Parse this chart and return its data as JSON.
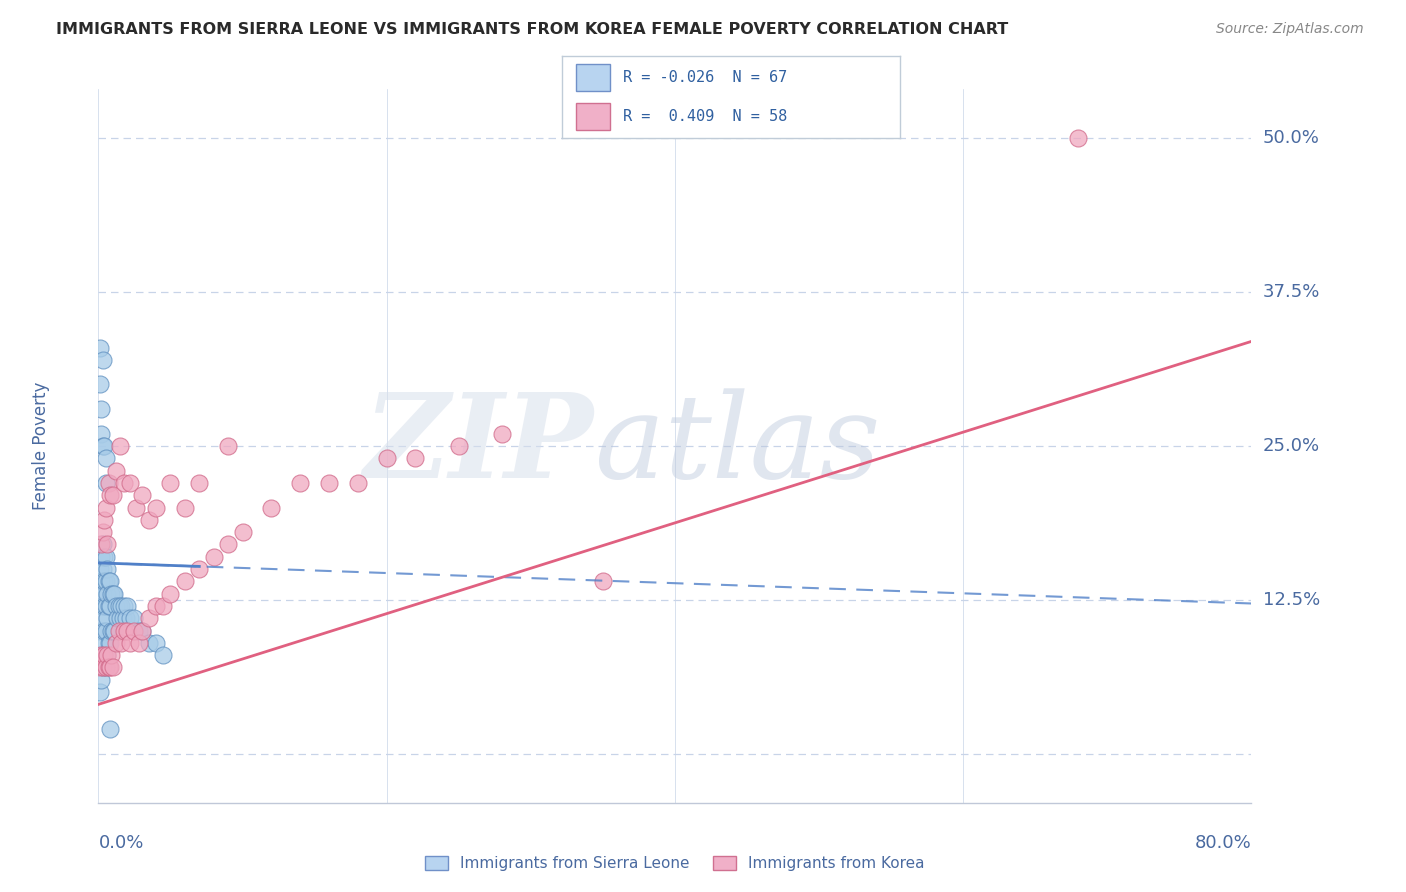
{
  "title": "IMMIGRANTS FROM SIERRA LEONE VS IMMIGRANTS FROM KOREA FEMALE POVERTY CORRELATION CHART",
  "source_text": "Source: ZipAtlas.com",
  "ylabel": "Female Poverty",
  "xlim": [
    0.0,
    0.8
  ],
  "ylim": [
    -0.04,
    0.54
  ],
  "yticks": [
    0.0,
    0.125,
    0.25,
    0.375,
    0.5
  ],
  "ytick_labels": [
    "",
    "12.5%",
    "25.0%",
    "37.5%",
    "50.0%"
  ],
  "background_color": "#ffffff",
  "grid_color": "#c8d4e8",
  "title_color": "#2a2a2a",
  "axis_color": "#4a6aa0",
  "sierra_leone_color": "#a8cce8",
  "sierra_leone_edge": "#6090c0",
  "korea_color": "#f0a8c0",
  "korea_edge": "#d06888",
  "trendline_sierra_color": "#5080c8",
  "trendline_korea_color": "#e06080",
  "sl_x": [
    0.001,
    0.001,
    0.001,
    0.001,
    0.001,
    0.002,
    0.002,
    0.002,
    0.002,
    0.003,
    0.003,
    0.003,
    0.003,
    0.003,
    0.003,
    0.004,
    0.004,
    0.004,
    0.004,
    0.004,
    0.005,
    0.005,
    0.005,
    0.005,
    0.005,
    0.006,
    0.006,
    0.006,
    0.006,
    0.007,
    0.007,
    0.007,
    0.008,
    0.008,
    0.008,
    0.009,
    0.009,
    0.01,
    0.01,
    0.011,
    0.011,
    0.012,
    0.013,
    0.014,
    0.015,
    0.016,
    0.017,
    0.018,
    0.019,
    0.02,
    0.022,
    0.025,
    0.028,
    0.03,
    0.035,
    0.04,
    0.045,
    0.001,
    0.001,
    0.002,
    0.002,
    0.003,
    0.003,
    0.004,
    0.005,
    0.005,
    0.008
  ],
  "sl_y": [
    0.15,
    0.13,
    0.1,
    0.08,
    0.05,
    0.16,
    0.14,
    0.12,
    0.06,
    0.17,
    0.15,
    0.13,
    0.11,
    0.09,
    0.07,
    0.16,
    0.14,
    0.12,
    0.1,
    0.08,
    0.16,
    0.14,
    0.12,
    0.1,
    0.07,
    0.15,
    0.13,
    0.11,
    0.08,
    0.14,
    0.12,
    0.09,
    0.14,
    0.12,
    0.09,
    0.13,
    0.1,
    0.13,
    0.1,
    0.13,
    0.1,
    0.12,
    0.11,
    0.12,
    0.11,
    0.12,
    0.11,
    0.12,
    0.11,
    0.12,
    0.11,
    0.11,
    0.1,
    0.1,
    0.09,
    0.09,
    0.08,
    0.33,
    0.3,
    0.28,
    0.26,
    0.32,
    0.25,
    0.25,
    0.24,
    0.22,
    0.02
  ],
  "kr_x": [
    0.001,
    0.002,
    0.003,
    0.004,
    0.005,
    0.006,
    0.007,
    0.008,
    0.009,
    0.01,
    0.012,
    0.014,
    0.016,
    0.018,
    0.02,
    0.022,
    0.025,
    0.028,
    0.03,
    0.035,
    0.04,
    0.045,
    0.05,
    0.06,
    0.07,
    0.08,
    0.09,
    0.1,
    0.12,
    0.14,
    0.16,
    0.18,
    0.2,
    0.22,
    0.25,
    0.28,
    0.002,
    0.003,
    0.004,
    0.005,
    0.006,
    0.007,
    0.008,
    0.01,
    0.012,
    0.015,
    0.018,
    0.022,
    0.026,
    0.03,
    0.035,
    0.04,
    0.05,
    0.06,
    0.07,
    0.09,
    0.35,
    0.68
  ],
  "kr_y": [
    0.07,
    0.08,
    0.07,
    0.08,
    0.07,
    0.08,
    0.07,
    0.07,
    0.08,
    0.07,
    0.09,
    0.1,
    0.09,
    0.1,
    0.1,
    0.09,
    0.1,
    0.09,
    0.1,
    0.11,
    0.12,
    0.12,
    0.13,
    0.14,
    0.15,
    0.16,
    0.17,
    0.18,
    0.2,
    0.22,
    0.22,
    0.22,
    0.24,
    0.24,
    0.25,
    0.26,
    0.17,
    0.18,
    0.19,
    0.2,
    0.17,
    0.22,
    0.21,
    0.21,
    0.23,
    0.25,
    0.22,
    0.22,
    0.2,
    0.21,
    0.19,
    0.2,
    0.22,
    0.2,
    0.22,
    0.25,
    0.14,
    0.5
  ],
  "sl_trend_x0": 0.0,
  "sl_trend_x1": 0.8,
  "sl_trend_y0": 0.155,
  "sl_trend_y1": 0.122,
  "kr_trend_x0": 0.0,
  "kr_trend_x1": 0.8,
  "kr_trend_y0": 0.04,
  "kr_trend_y1": 0.335,
  "legend_sl_text": "R = -0.026  N = 67",
  "legend_kr_text": "R =  0.409  N = 58",
  "legend_sl_fill": "#b8d4f0",
  "legend_sl_edge": "#7090c8",
  "legend_kr_fill": "#f0b0c8",
  "legend_kr_edge": "#d07090",
  "legend_text_color": "#3060a0"
}
